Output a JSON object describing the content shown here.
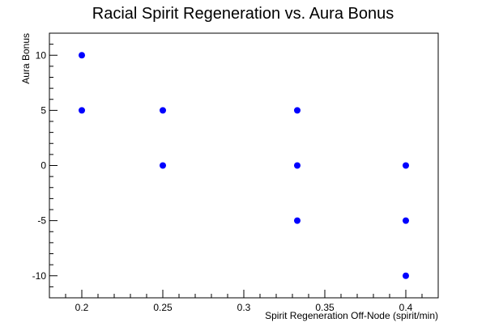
{
  "chart_data": {
    "type": "scatter",
    "title": "Racial Spirit Regeneration vs. Aura Bonus",
    "xlabel": "Spirit Regeneration Off-Node (spirit/min)",
    "ylabel": "Aura Bonus",
    "xlim": [
      0.18,
      0.42
    ],
    "ylim": [
      -12,
      12
    ],
    "x_ticks": [
      0.2,
      0.25,
      0.3,
      0.35,
      0.4
    ],
    "x_tick_labels": [
      "0.2",
      "0.25",
      "0.3",
      "0.35",
      "0.4"
    ],
    "y_ticks": [
      10,
      5,
      0,
      -5,
      -10
    ],
    "y_tick_labels": [
      "10",
      "5",
      "0",
      "-5",
      "-10"
    ],
    "grid": false,
    "marker_color": "#0000ff",
    "points": [
      {
        "x": 0.2,
        "y": 10
      },
      {
        "x": 0.2,
        "y": 5
      },
      {
        "x": 0.25,
        "y": 5
      },
      {
        "x": 0.25,
        "y": 0
      },
      {
        "x": 0.333,
        "y": 5
      },
      {
        "x": 0.333,
        "y": 0
      },
      {
        "x": 0.333,
        "y": -5
      },
      {
        "x": 0.4,
        "y": 0
      },
      {
        "x": 0.4,
        "y": -5
      },
      {
        "x": 0.4,
        "y": -10
      }
    ]
  }
}
